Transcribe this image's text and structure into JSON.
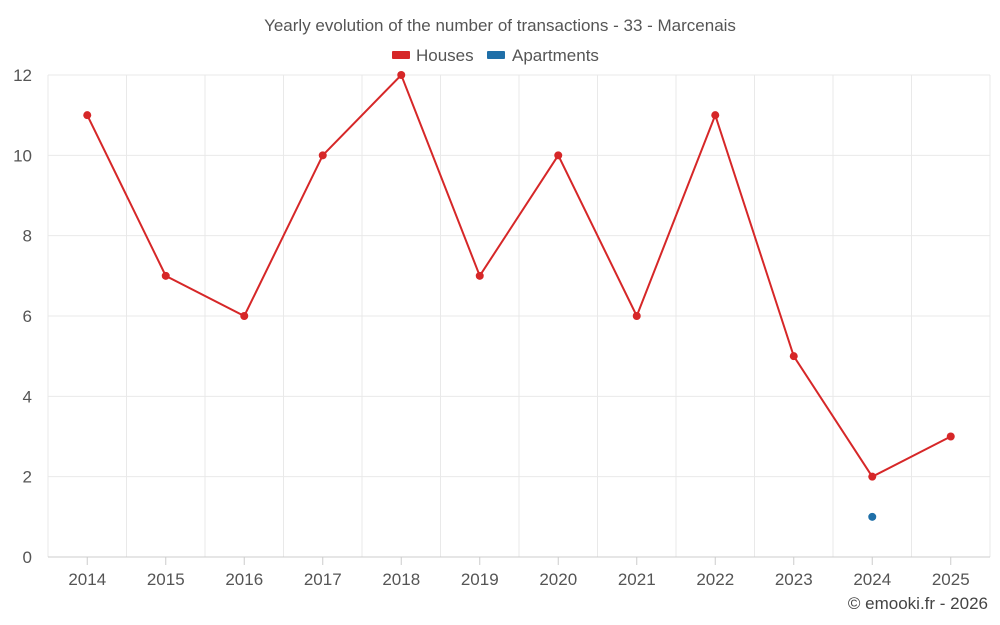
{
  "chart_data": {
    "type": "line",
    "title": "Yearly evolution of the number of transactions - 33 - Marcenais",
    "xlabel": "",
    "ylabel": "",
    "categories": [
      "2014",
      "2015",
      "2016",
      "2017",
      "2018",
      "2019",
      "2020",
      "2021",
      "2022",
      "2023",
      "2024",
      "2025"
    ],
    "ylim": [
      0,
      12
    ],
    "yticks": [
      0,
      2,
      4,
      6,
      8,
      10,
      12
    ],
    "grid": true,
    "legend_position": "top-center",
    "series": [
      {
        "name": "Houses",
        "color": "#d62728",
        "values": [
          11,
          7,
          6,
          10,
          12,
          7,
          10,
          6,
          11,
          5,
          2,
          3
        ]
      },
      {
        "name": "Apartments",
        "color": "#1f6fa8",
        "values": [
          null,
          null,
          null,
          null,
          null,
          null,
          null,
          null,
          null,
          null,
          1,
          null
        ]
      }
    ],
    "credit": "© emooki.fr - 2026"
  }
}
